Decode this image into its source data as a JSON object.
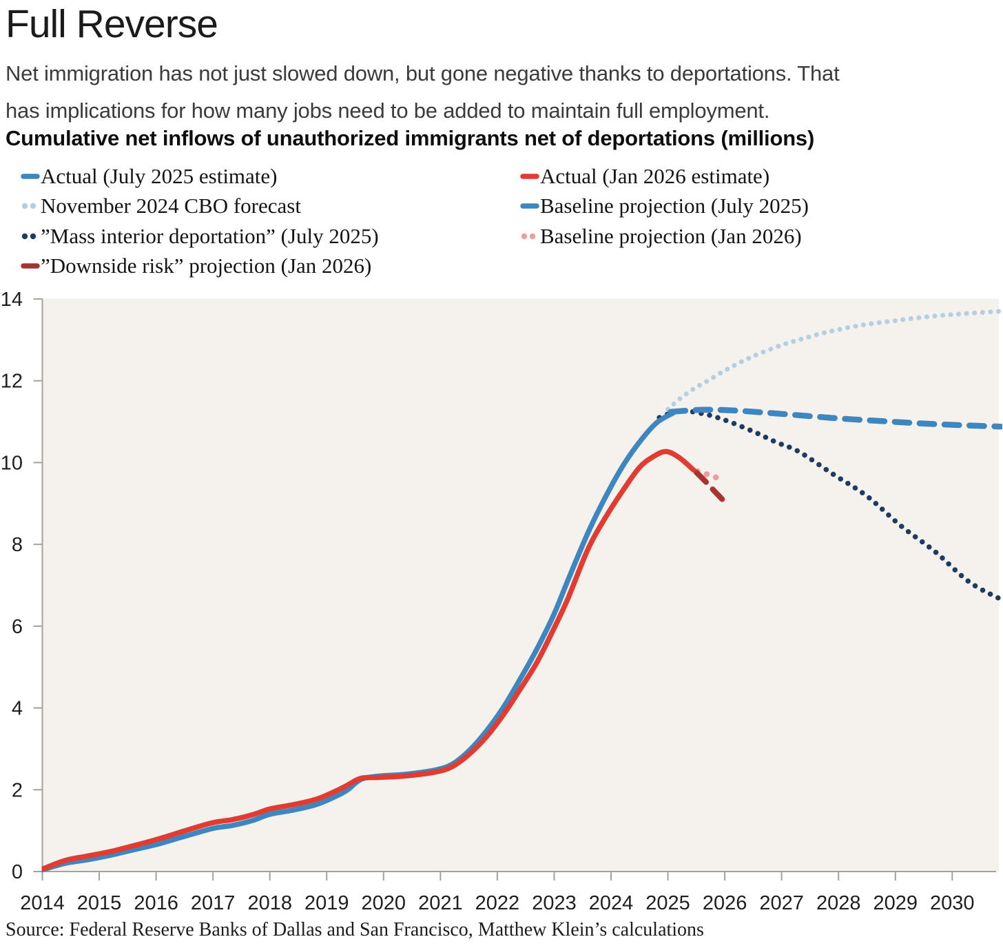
{
  "header": {
    "title": "Full Reverse",
    "subtitle_lines": [
      "Net immigration has not just slowed down, but gone negative thanks to deportations. That",
      "has implications for how many jobs need to be added to maintain full employment."
    ]
  },
  "footer": {
    "source": "Source: Federal Reserve Banks of Dallas and San Francisco, Matthew Klein’s calculations"
  },
  "legend": {
    "columns": [
      [
        {
          "label": "Actual (July 2025 estimate)",
          "series": 3
        },
        {
          "label": "November 2024 CBO forecast",
          "series": 0
        },
        {
          "label": "”Mass interior deportation” (July 2025)",
          "series": 1
        },
        {
          "label": "”Downside risk” projection (Jan 2026)",
          "series": 5
        }
      ],
      [
        {
          "label": "Actual (Jan 2026 estimate)",
          "series": 6
        },
        {
          "label": "Baseline projection (July 2025)",
          "series": 2
        },
        {
          "label": "Baseline projection (Jan 2026)",
          "series": 4
        }
      ]
    ]
  },
  "chart_data": {
    "type": "line",
    "title": "Cumulative net inflows of unauthorized immigrants net of deportations (millions)",
    "xlabel": "",
    "ylabel": "",
    "x_range": [
      2014,
      2030.9
    ],
    "ylim": [
      0,
      14
    ],
    "y_ticks": [
      0,
      2,
      4,
      6,
      8,
      10,
      12,
      14
    ],
    "x_ticks": [
      2014,
      2015,
      2016,
      2017,
      2018,
      2019,
      2020,
      2021,
      2022,
      2023,
      2024,
      2025,
      2026,
      2027,
      2028,
      2029,
      2030
    ],
    "grid": false,
    "legend_position": "top",
    "background": "#f5f2ee",
    "axis_color": "#a3a19c",
    "series": [
      {
        "name": "November 2024 CBO forecast",
        "style": "dotted",
        "color": "#b4cfe4",
        "width": 7,
        "points": [
          [
            2025.0,
            11.3
          ],
          [
            2025.2,
            11.55
          ],
          [
            2025.45,
            11.8
          ],
          [
            2025.7,
            12.0
          ],
          [
            2026.0,
            12.25
          ],
          [
            2026.3,
            12.47
          ],
          [
            2026.6,
            12.66
          ],
          [
            2027.0,
            12.87
          ],
          [
            2027.3,
            13.0
          ],
          [
            2027.8,
            13.19
          ],
          [
            2028.4,
            13.36
          ],
          [
            2029.0,
            13.47
          ],
          [
            2029.6,
            13.57
          ],
          [
            2030.2,
            13.64
          ],
          [
            2030.85,
            13.7
          ]
        ]
      },
      {
        "name": "”Mass interior deportation” (July 2025)",
        "style": "dotted",
        "color": "#1e3c5f",
        "width": 7.5,
        "points": [
          [
            2024.85,
            11.1
          ],
          [
            2025.2,
            11.26
          ],
          [
            2025.6,
            11.2
          ],
          [
            2026.0,
            11.04
          ],
          [
            2026.5,
            10.76
          ],
          [
            2026.9,
            10.5
          ],
          [
            2027.3,
            10.27
          ],
          [
            2027.9,
            9.72
          ],
          [
            2028.5,
            9.18
          ],
          [
            2029.1,
            8.45
          ],
          [
            2029.7,
            7.82
          ],
          [
            2030.3,
            7.08
          ],
          [
            2030.85,
            6.66
          ]
        ]
      },
      {
        "name": "Baseline projection (July 2025)",
        "style": "dashed",
        "color": "#3e86c0",
        "width": 8.5,
        "points": [
          [
            2025.05,
            11.24
          ],
          [
            2025.6,
            11.29
          ],
          [
            2026.2,
            11.27
          ],
          [
            2027.0,
            11.19
          ],
          [
            2027.9,
            11.09
          ],
          [
            2028.8,
            11.01
          ],
          [
            2029.7,
            10.94
          ],
          [
            2030.85,
            10.88
          ]
        ]
      },
      {
        "name": "Actual (July 2025 estimate)",
        "style": "solid",
        "color": "#3e86c0",
        "width": 7.5,
        "points": [
          [
            2014.0,
            0.04
          ],
          [
            2014.4,
            0.2
          ],
          [
            2014.8,
            0.29
          ],
          [
            2015.2,
            0.4
          ],
          [
            2015.6,
            0.53
          ],
          [
            2016.0,
            0.66
          ],
          [
            2016.4,
            0.82
          ],
          [
            2016.8,
            0.98
          ],
          [
            2017.05,
            1.07
          ],
          [
            2017.35,
            1.13
          ],
          [
            2017.7,
            1.25
          ],
          [
            2018.0,
            1.4
          ],
          [
            2018.4,
            1.5
          ],
          [
            2018.8,
            1.63
          ],
          [
            2019.1,
            1.8
          ],
          [
            2019.35,
            1.98
          ],
          [
            2019.6,
            2.25
          ],
          [
            2019.9,
            2.33
          ],
          [
            2020.4,
            2.38
          ],
          [
            2020.9,
            2.48
          ],
          [
            2021.2,
            2.62
          ],
          [
            2021.5,
            2.95
          ],
          [
            2021.8,
            3.42
          ],
          [
            2022.1,
            4.0
          ],
          [
            2022.4,
            4.7
          ],
          [
            2022.7,
            5.45
          ],
          [
            2023.0,
            6.3
          ],
          [
            2023.25,
            7.15
          ],
          [
            2023.6,
            8.3
          ],
          [
            2023.9,
            9.15
          ],
          [
            2024.2,
            9.9
          ],
          [
            2024.5,
            10.5
          ],
          [
            2024.8,
            10.97
          ],
          [
            2025.1,
            11.22
          ]
        ]
      },
      {
        "name": "Baseline projection (Jan 2026)",
        "style": "dotted",
        "color": "#f19c9c",
        "width": 8.5,
        "points": [
          [
            2025.52,
            9.79
          ],
          [
            2025.67,
            9.72
          ],
          [
            2025.82,
            9.65
          ],
          [
            2025.97,
            9.58
          ]
        ]
      },
      {
        "name": "”Downside risk” projection (Jan 2026)",
        "style": "dashed",
        "color": "#a93331",
        "width": 8,
        "points": [
          [
            2025.5,
            9.76
          ],
          [
            2025.66,
            9.54
          ],
          [
            2025.82,
            9.3
          ],
          [
            2025.97,
            9.08
          ]
        ]
      },
      {
        "name": "Actual (Jan 2026 estimate)",
        "style": "solid",
        "color": "#e13c32",
        "width": 7.5,
        "points": [
          [
            2014.0,
            0.06
          ],
          [
            2014.4,
            0.27
          ],
          [
            2014.8,
            0.38
          ],
          [
            2015.2,
            0.49
          ],
          [
            2015.6,
            0.63
          ],
          [
            2016.0,
            0.78
          ],
          [
            2016.4,
            0.95
          ],
          [
            2016.8,
            1.12
          ],
          [
            2017.05,
            1.21
          ],
          [
            2017.35,
            1.27
          ],
          [
            2017.7,
            1.39
          ],
          [
            2018.0,
            1.53
          ],
          [
            2018.4,
            1.63
          ],
          [
            2018.8,
            1.76
          ],
          [
            2019.1,
            1.93
          ],
          [
            2019.35,
            2.1
          ],
          [
            2019.6,
            2.28
          ],
          [
            2019.9,
            2.3
          ],
          [
            2020.4,
            2.34
          ],
          [
            2020.9,
            2.43
          ],
          [
            2021.2,
            2.56
          ],
          [
            2021.5,
            2.86
          ],
          [
            2021.8,
            3.28
          ],
          [
            2022.1,
            3.82
          ],
          [
            2022.4,
            4.45
          ],
          [
            2022.7,
            5.12
          ],
          [
            2023.0,
            5.95
          ],
          [
            2023.25,
            6.7
          ],
          [
            2023.6,
            7.9
          ],
          [
            2023.9,
            8.65
          ],
          [
            2024.2,
            9.3
          ],
          [
            2024.5,
            9.88
          ],
          [
            2024.75,
            10.15
          ],
          [
            2024.97,
            10.27
          ],
          [
            2025.2,
            10.12
          ],
          [
            2025.45,
            9.82
          ]
        ]
      }
    ]
  }
}
